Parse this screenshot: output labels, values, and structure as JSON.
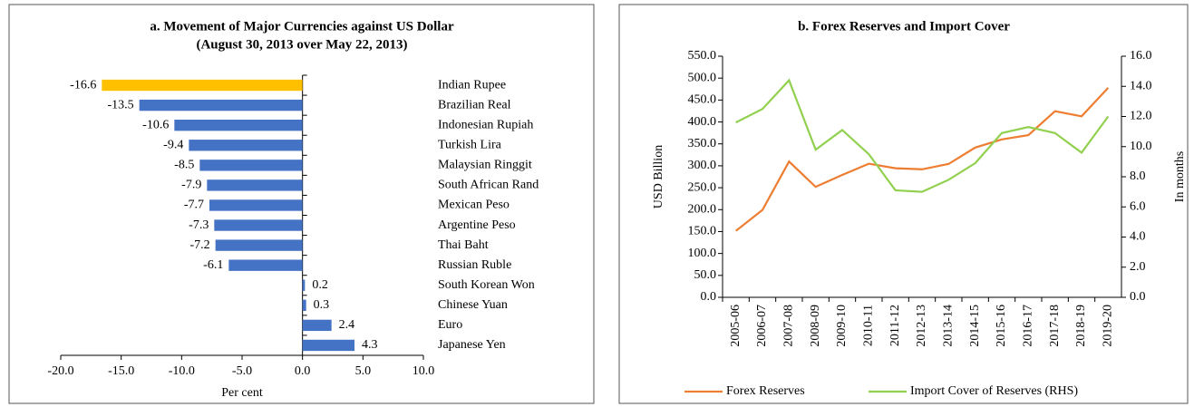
{
  "chart_data": [
    {
      "type": "bar",
      "orientation": "horizontal",
      "title": [
        "a. Movement of Major Currencies against US Dollar",
        "(August 30, 2013 over May 22, 2013)"
      ],
      "xlabel": "Per cent",
      "categories": [
        "Indian Rupee",
        "Brazilian Real",
        "Indonesian Rupiah",
        "Turkish Lira",
        "Malaysian Ringgit",
        "South African Rand",
        "Mexican Peso",
        "Argentine Peso",
        "Thai Baht",
        "Russian Ruble",
        "South Korean Won",
        "Chinese Yuan",
        "Euro",
        "Japanese Yen"
      ],
      "values": [
        -16.6,
        -13.5,
        -10.6,
        -9.4,
        -8.5,
        -7.9,
        -7.7,
        -7.3,
        -7.2,
        -6.1,
        0.2,
        0.3,
        2.4,
        4.3
      ],
      "colors": [
        "#ffc000",
        "#4472c4",
        "#4472c4",
        "#4472c4",
        "#4472c4",
        "#4472c4",
        "#4472c4",
        "#4472c4",
        "#4472c4",
        "#4472c4",
        "#4472c4",
        "#4472c4",
        "#4472c4",
        "#4472c4"
      ],
      "xlim": [
        -20,
        10
      ],
      "xticks": [
        {
          "value": -20,
          "label": "-20.0"
        },
        {
          "value": -15,
          "label": "-15.0"
        },
        {
          "value": -10,
          "label": "-10.0"
        },
        {
          "value": -5,
          "label": "-5.0"
        },
        {
          "value": 0,
          "label": "0.0"
        },
        {
          "value": 5,
          "label": "5.0"
        },
        {
          "value": 10,
          "label": "10.0"
        }
      ]
    },
    {
      "type": "line",
      "title": "b. Forex Reserves and Import Cover",
      "ylabel": "USD Billion",
      "y2label": "In months",
      "categories": [
        "2005-06",
        "2006-07",
        "2007-08",
        "2008-09",
        "2009-10",
        "2010-11",
        "2011-12",
        "2012-13",
        "2013-14",
        "2014-15",
        "2015-16",
        "2016-17",
        "2017-18",
        "2018-19",
        "2019-20"
      ],
      "series": [
        {
          "name": "Forex Reserves",
          "color": "#ed7d31",
          "values": [
            151.6,
            199.2,
            309.7,
            252.0,
            279.1,
            304.8,
            294.4,
            292.0,
            304.2,
            341.6,
            360.2,
            370.0,
            424.5,
            412.9,
            477.8
          ]
        },
        {
          "name": "Import Cover of Reserves (RHS)",
          "color": "#92d050",
          "axis": "y2",
          "values": [
            11.6,
            12.5,
            14.4,
            9.8,
            11.1,
            9.5,
            7.1,
            7.0,
            7.8,
            8.9,
            10.9,
            11.3,
            10.9,
            9.6,
            12.0
          ]
        }
      ],
      "ylim": [
        0,
        550
      ],
      "yticks": [
        {
          "value": 0,
          "label": "0.0"
        },
        {
          "value": 50,
          "label": "50.0"
        },
        {
          "value": 100,
          "label": "100.0"
        },
        {
          "value": 150,
          "label": "150.0"
        },
        {
          "value": 200,
          "label": "200.0"
        },
        {
          "value": 250,
          "label": "250.0"
        },
        {
          "value": 300,
          "label": "300.0"
        },
        {
          "value": 350,
          "label": "350.0"
        },
        {
          "value": 400,
          "label": "400.0"
        },
        {
          "value": 450,
          "label": "450.0"
        },
        {
          "value": 500,
          "label": "500.0"
        },
        {
          "value": 550,
          "label": "550.0"
        }
      ],
      "y2lim": [
        0,
        16
      ],
      "y2ticks": [
        {
          "value": 0,
          "label": "0.0"
        },
        {
          "value": 2,
          "label": "2.0"
        },
        {
          "value": 4,
          "label": "4.0"
        },
        {
          "value": 6,
          "label": "6.0"
        },
        {
          "value": 8,
          "label": "8.0"
        },
        {
          "value": 10,
          "label": "10.0"
        },
        {
          "value": 12,
          "label": "12.0"
        },
        {
          "value": 14,
          "label": "14.0"
        },
        {
          "value": 16,
          "label": "16.0"
        }
      ]
    }
  ]
}
